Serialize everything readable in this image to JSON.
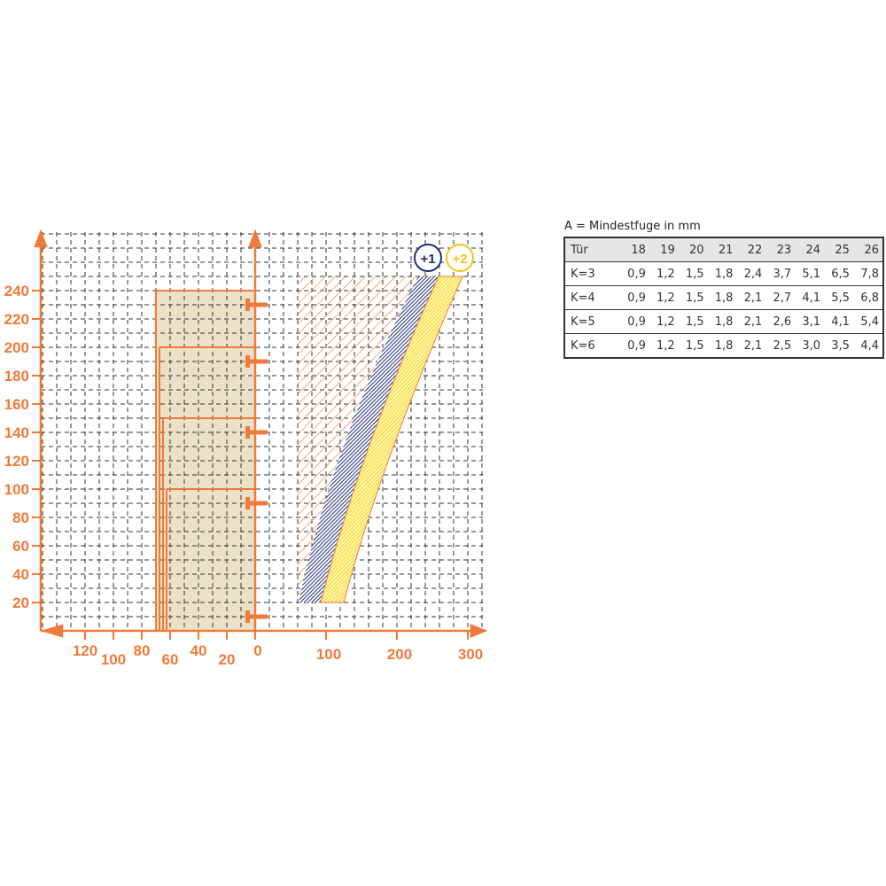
{
  "chart_data": {
    "type": "area",
    "y_axis": {
      "ticks": [
        20,
        40,
        60,
        80,
        100,
        120,
        140,
        160,
        180,
        200,
        220,
        240
      ],
      "range": [
        0,
        270
      ]
    },
    "x_axis_left": {
      "ticks": [
        120,
        100,
        80,
        60,
        40,
        20,
        0
      ],
      "direction": "reversed"
    },
    "x_axis_right": {
      "ticks": [
        100,
        200,
        300
      ],
      "range": [
        0,
        320
      ]
    },
    "grid": true,
    "door_steps": [
      {
        "height": 240,
        "width": 70
      },
      {
        "height": 200,
        "width": 67.5
      },
      {
        "height": 150,
        "width": 65
      },
      {
        "height": 100,
        "width": 62.5
      }
    ],
    "hinge_markers_at": [
      230,
      190,
      140,
      90,
      10
    ],
    "bands": [
      {
        "name": "+1",
        "color": "#1f2f7a",
        "bottom": {
          "y": 20,
          "x": [
            60,
            90
          ]
        },
        "top": {
          "y": 250,
          "x": [
            230,
            260
          ]
        }
      },
      {
        "name": "+2",
        "color": "#f5d020",
        "bottom": {
          "y": 20,
          "x": [
            90,
            125
          ]
        },
        "top": {
          "y": 250,
          "x": [
            260,
            293
          ]
        }
      }
    ],
    "colors": {
      "axis": "#ef7a3a",
      "door_fill": "#ece0c6",
      "hatch": "#ef7a3a"
    }
  },
  "table": {
    "caption": "A = Mindestfuge in mm",
    "header": [
      "Tür",
      "18",
      "19",
      "20",
      "21",
      "22",
      "23",
      "24",
      "25",
      "26"
    ],
    "rows": [
      [
        "K=3",
        "0,9",
        "1,2",
        "1,5",
        "1,8",
        "2,4",
        "3,7",
        "5,1",
        "6,5",
        "7,8"
      ],
      [
        "K=4",
        "0,9",
        "1,2",
        "1,5",
        "1,8",
        "2,1",
        "2,7",
        "4,1",
        "5,5",
        "6,8"
      ],
      [
        "K=5",
        "0,9",
        "1,2",
        "1,5",
        "1,8",
        "2,1",
        "2,6",
        "3,1",
        "4,1",
        "5,4"
      ],
      [
        "K=6",
        "0,9",
        "1,2",
        "1,5",
        "1,8",
        "2,1",
        "2,5",
        "3,0",
        "3,5",
        "4,4"
      ]
    ]
  }
}
